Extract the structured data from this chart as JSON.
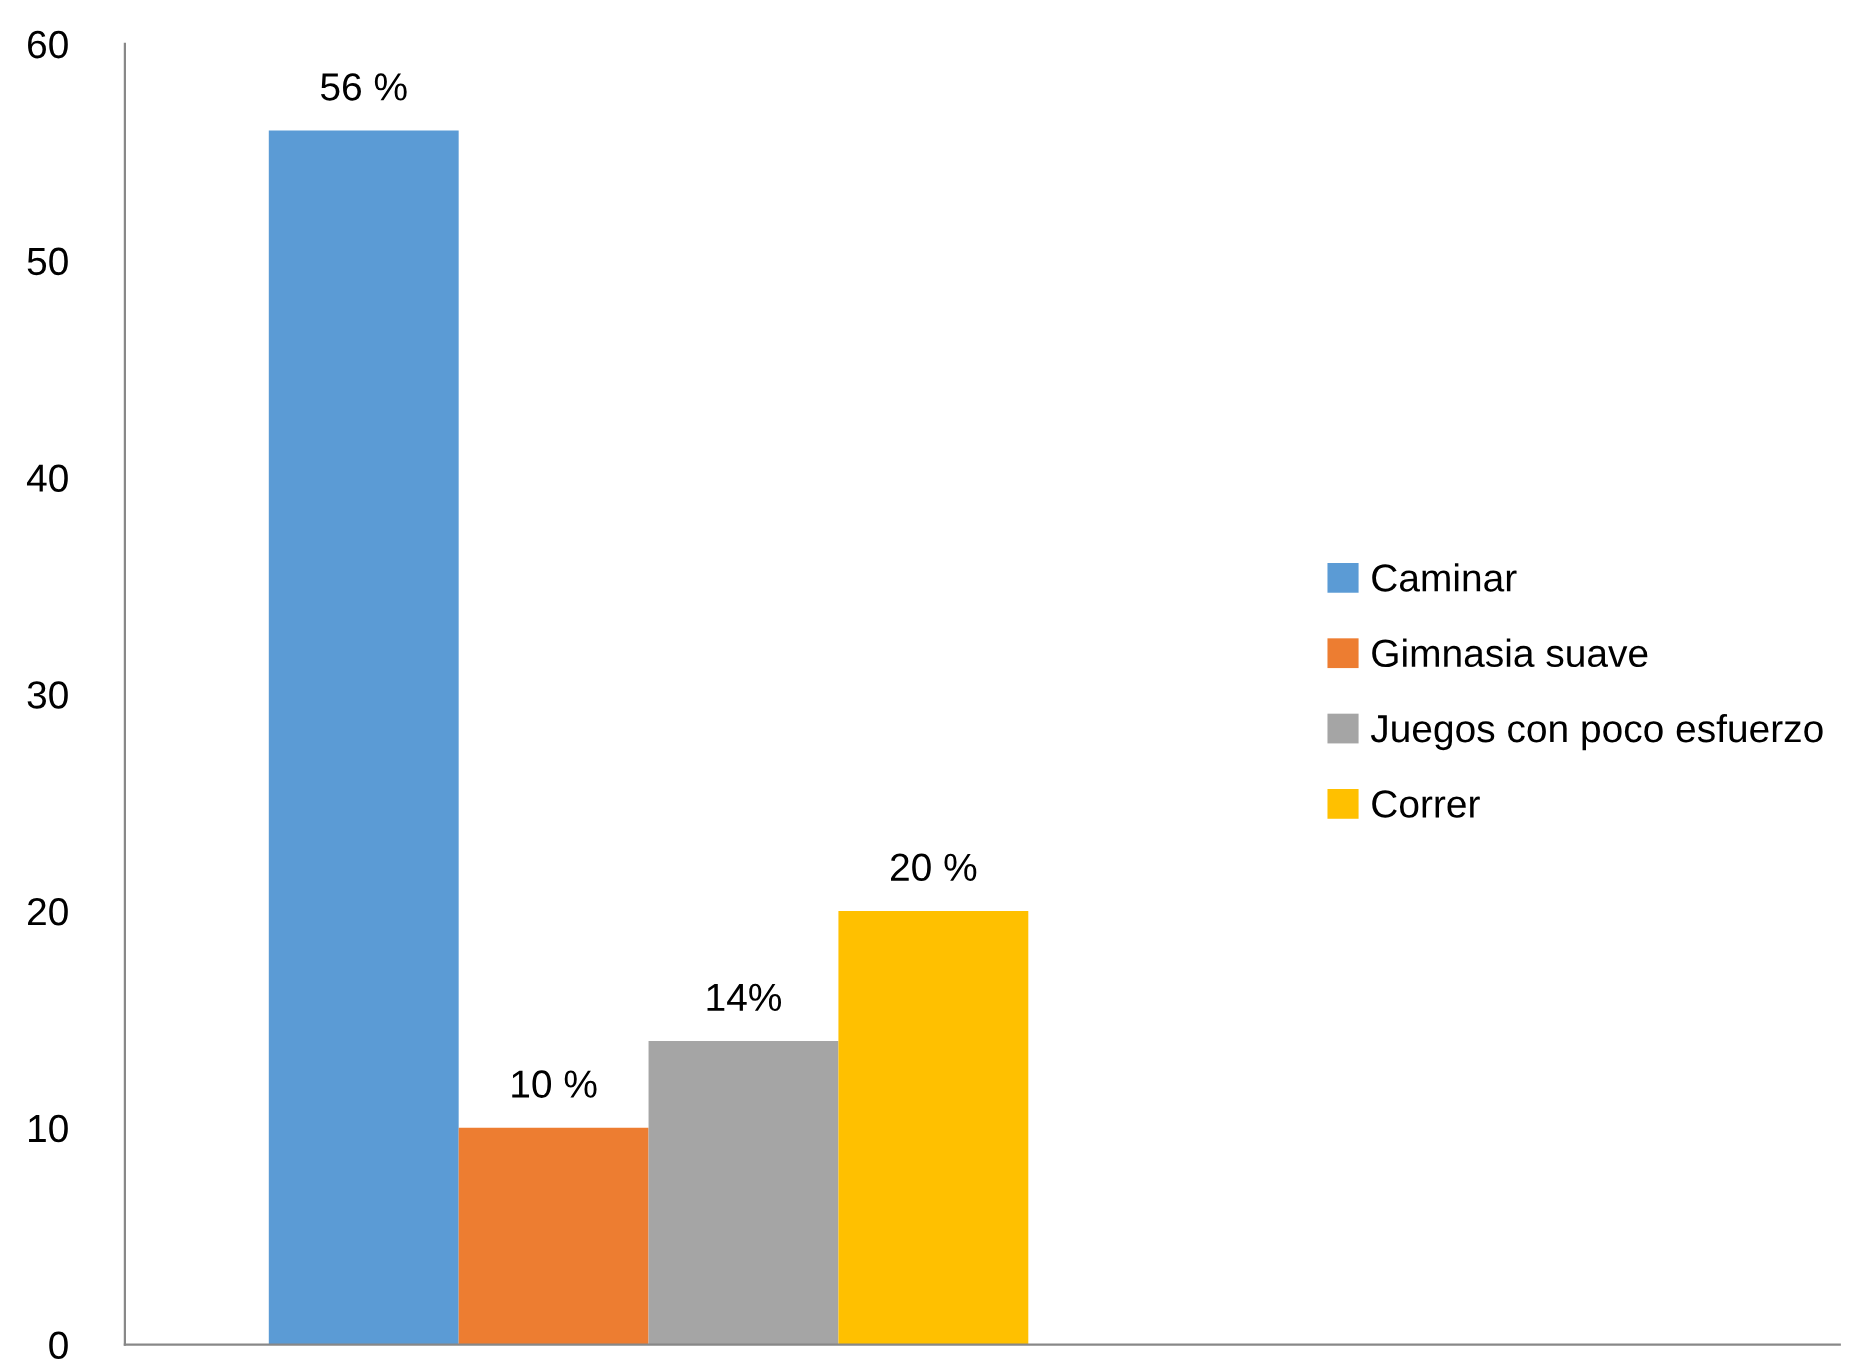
{
  "chart_data": {
    "type": "bar",
    "categories": [
      null
    ],
    "series": [
      {
        "name": "Caminar",
        "color": "#5b9bd5",
        "values": [
          56
        ],
        "value_labels": [
          "56 %"
        ]
      },
      {
        "name": "Gimnasia suave",
        "color": "#ed7d31",
        "values": [
          10
        ],
        "value_labels": [
          "10 %"
        ]
      },
      {
        "name": "Juegos con poco esfuerzo",
        "color": "#a5a5a5",
        "values": [
          14
        ],
        "value_labels": [
          "14%"
        ]
      },
      {
        "name": "Correr",
        "color": "#ffc000",
        "values": [
          20
        ],
        "value_labels": [
          "20 %"
        ]
      }
    ],
    "ylim": [
      0,
      60
    ],
    "yticks": [
      0,
      10,
      20,
      30,
      40,
      50,
      60
    ],
    "grid": false,
    "legend": "right"
  }
}
